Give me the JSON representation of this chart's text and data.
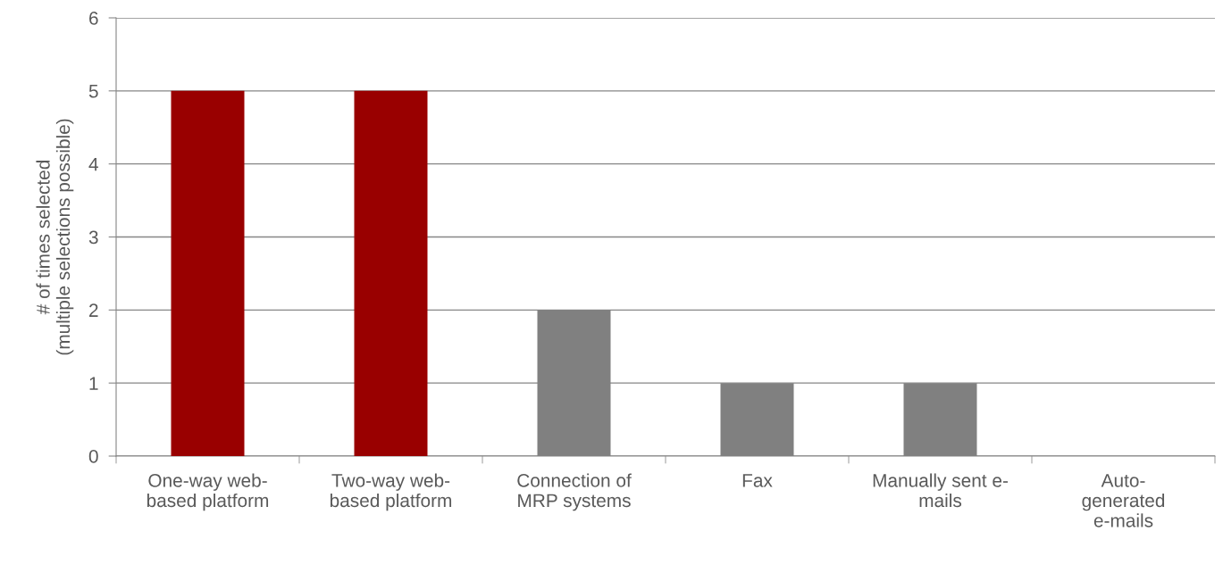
{
  "chart_data": {
    "type": "bar",
    "ylabel": "# of times selected\n(multiple selections possible)",
    "categories": [
      "One-way web-\nbased platform",
      "Two-way web-\nbased platform",
      "Connection of\nMRP systems",
      "Fax",
      "Manually sent e-\nmails",
      "Auto-\ngenerated\ne-mails"
    ],
    "values": [
      5,
      5,
      2,
      1,
      1,
      0
    ],
    "colors": [
      "#990000",
      "#990000",
      "#808080",
      "#808080",
      "#808080",
      "#808080"
    ],
    "ylim": [
      0,
      6
    ],
    "yticks": [
      0,
      1,
      2,
      3,
      4,
      5,
      6
    ],
    "grid": "y",
    "legend": false
  }
}
